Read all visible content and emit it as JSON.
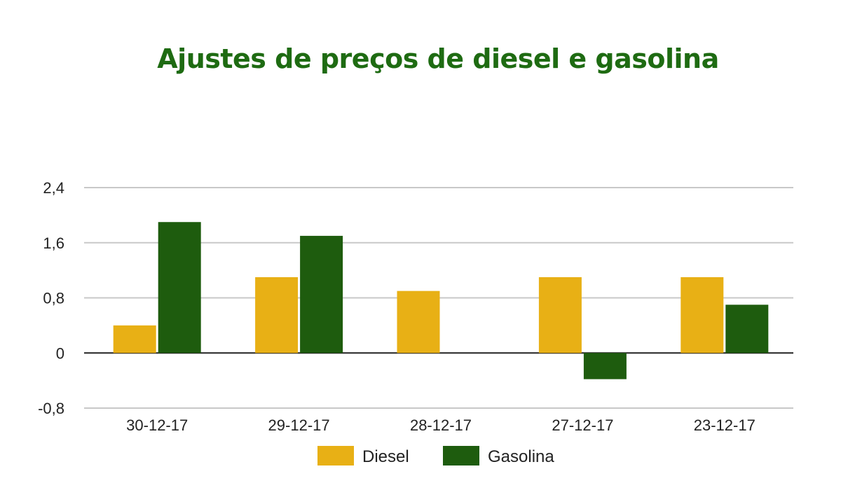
{
  "chart_data": {
    "type": "bar",
    "title": "Ajustes de preços de diesel e gasolina",
    "categories": [
      "30-12-17",
      "29-12-17",
      "28-12-17",
      "27-12-17",
      "23-12-17"
    ],
    "series": [
      {
        "name": "Diesel",
        "color": "#e8b015",
        "values": [
          0.4,
          1.1,
          0.9,
          1.1,
          1.1
        ]
      },
      {
        "name": "Gasolina",
        "color": "#1e5c0e",
        "values": [
          1.9,
          1.7,
          0,
          -0.38,
          0.7
        ]
      }
    ],
    "yticks": [
      "2,4",
      "1,6",
      "0,8",
      "0",
      "-0,8"
    ],
    "ytick_values": [
      2.4,
      1.6,
      0.8,
      0,
      -0.8
    ],
    "ylim": [
      -0.8,
      2.4
    ],
    "xlabel": "",
    "ylabel": "",
    "grid": true,
    "legend_position": "bottom"
  }
}
